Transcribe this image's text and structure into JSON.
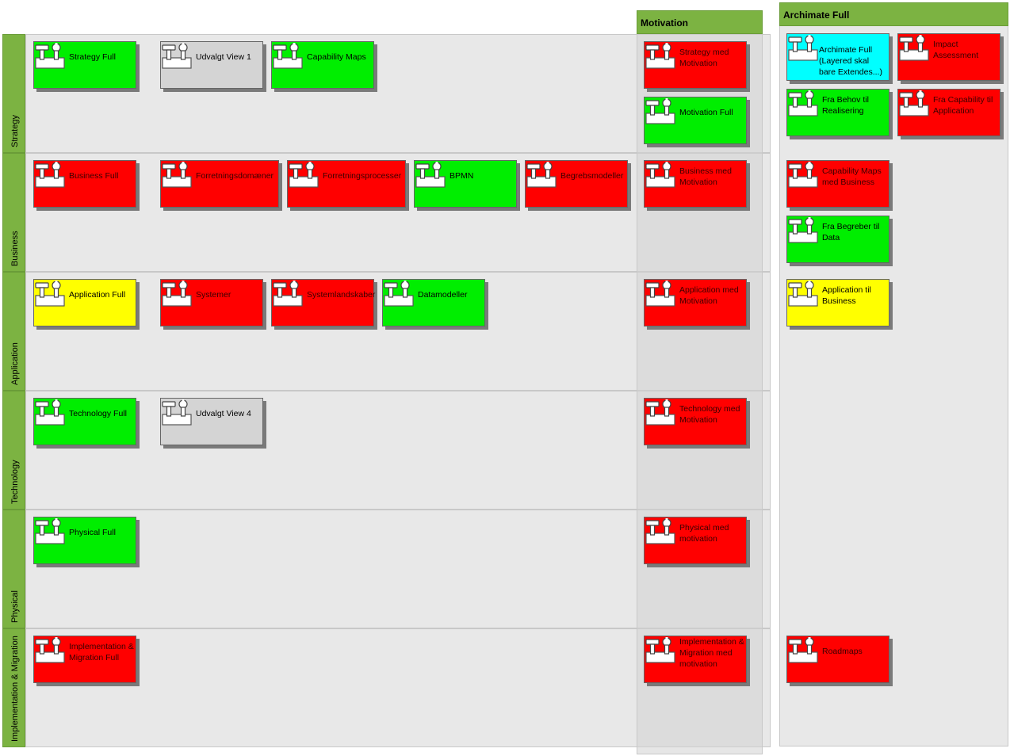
{
  "lanes": [
    {
      "label": "Strategy"
    },
    {
      "label": "Business"
    },
    {
      "label": "Application"
    },
    {
      "label": "Technology"
    },
    {
      "label": "Physical"
    },
    {
      "label": "Implementation & Migration"
    }
  ],
  "columns": {
    "motivation": {
      "title": "Motivation"
    },
    "archimate_full": {
      "title": "Archimate Full"
    }
  },
  "views": {
    "strategy_full": "Strategy Full",
    "udvalgt_view_1": "Udvalgt View 1",
    "capability_maps": "Capability Maps",
    "business_full": "Business Full",
    "forretningsdomaener": "Forretningsdomæner",
    "forretningsprocesser": "Forretningsprocesser",
    "bpmn": "BPMN",
    "begrebsmodeller": "Begrebsmodeller",
    "application_full": "Application Full",
    "systemer": "Systemer",
    "systemlandskaber": "Systemlandskaber",
    "datamodeller": "Datamodeller",
    "technology_full": "Technology Full",
    "udvalgt_view_4": "Udvalgt View 4",
    "physical_full": "Physical Full",
    "implementation_migration_full": "Implementation & Migration Full",
    "strategy_med_motivation": "Strategy med Motivation",
    "motivation_full": "Motivation Full",
    "business_med_motivation": "Business med Motivation",
    "application_med_motivation": "Application med Motivation",
    "technology_med_motivation": "Technology med Motivation",
    "physical_med_motivation": "Physical med motivation",
    "implementation_migration_med_motivation": "Implementation & Migration med motivation",
    "archimate_full_layered": "Archimate Full (Layered skal bare Extendes...)",
    "impact_assessment": "Impact Assessment",
    "fra_behov_til_realisering": "Fra Behov til Realisering",
    "fra_capability_til_application": "Fra Capability til Application",
    "capability_maps_med_business": "Capability Maps med Business",
    "fra_begreber_til_data": "Fra Begreber til Data",
    "application_til_business": "Application til Business",
    "roadmaps": "Roadmaps"
  },
  "status_colors": {
    "green": "#00ee00",
    "red": "#ff0000",
    "yellow": "#ffff00",
    "grey": "#d4d4d4",
    "cyan": "#00ffff",
    "lane_tab": "#7cb342"
  },
  "icon": "hammer-wrench-toolbox-icon"
}
